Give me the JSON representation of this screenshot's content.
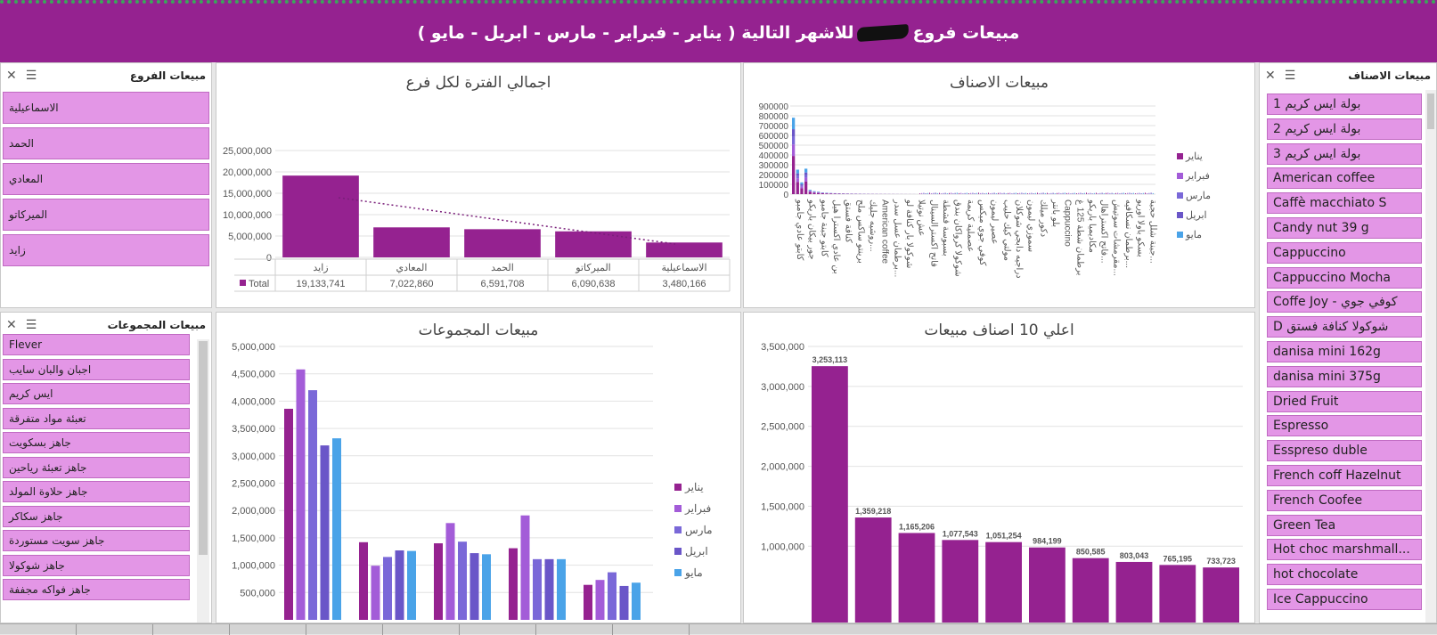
{
  "banner": {
    "title_pre": "مبيعات فروع",
    "title_post": "للاشهر التالية ( يناير - فبراير - مارس - ابريل - مايو )"
  },
  "branch_slicer": {
    "title": "مبيعات الفروع",
    "items": [
      "الاسماعيلية",
      "الحمد",
      "المعادي",
      "الميركاتو",
      "زايد"
    ]
  },
  "group_slicer": {
    "title": "مبيعات المجموعات",
    "items": [
      "Flever",
      "اجبان والبان سايب",
      "ايس كريم",
      "تعبئة مواد متفرقة",
      "جاهز بسكويت",
      "جاهز تعبئة رياحين",
      "جاهز حلاوة المولد",
      "جاهز سكاكر",
      "جاهز سويت مستوردة",
      "جاهز شوكولا",
      "جاهز فواكه مجففة"
    ]
  },
  "items_slicer": {
    "title": "مبيعات الاصناف",
    "items": [
      "1 بولة ايس كريم",
      "2 بولة ايس كريم",
      "3 بولة ايس كريم",
      "American coffee",
      "Caffè macchiato S",
      "Candy nut 39 g",
      "Cappuccino",
      "Cappuccino Mocha",
      "Coffe Joy - كوفي جوي",
      "D شوكولا كنافة فستق",
      "danisa mini 162g",
      "danisa mini 375g",
      "Dried Fruit",
      "Espresso",
      "Esspreso duble",
      "French coff Hazelnut",
      "French Coofee",
      "Green Tea",
      "Hot choc marshmall...",
      "hot chocolate",
      "Ice Cappuccino"
    ]
  },
  "months": [
    "يناير",
    "فبراير",
    "مارس",
    "ابريل",
    "مايو"
  ],
  "month_colors": [
    "#952290",
    "#a35cd8",
    "#7a68d8",
    "#6a56c8",
    "#4aa3e8"
  ],
  "tabs": [
    "",
    "",
    "",
    "",
    "",
    "",
    "",
    "",
    ""
  ],
  "chart_data": [
    {
      "type": "bar",
      "title": "اجمالي الفترة لكل فرع",
      "categories": [
        "زايد",
        "المعادي",
        "الحمد",
        "الميركاتو",
        "الاسماعيلية"
      ],
      "values": [
        19133741,
        7022860,
        6591708,
        6090638,
        3480166
      ],
      "value_labels": [
        "19,133,741",
        "7,022,860",
        "6,591,708",
        "6,090,638",
        "3,480,166"
      ],
      "series_label": "Total",
      "ylim": [
        0,
        25000000
      ],
      "yticks": [
        "0",
        "5,000,000",
        "10,000,000",
        "15,000,000",
        "20,000,000",
        "25,000,000"
      ],
      "trendline": true,
      "color": "#952290"
    },
    {
      "type": "bar",
      "title": "مبيعات الاصناف",
      "ylim": [
        0,
        900000
      ],
      "yticks": [
        "0",
        "100000",
        "200000",
        "300000",
        "400000",
        "500000",
        "600000",
        "700000",
        "800000",
        "900000"
      ],
      "x_labels": [
        "كابتو عادي جامبو",
        "جور بيكان باريكو",
        "كابتو جبنة جامبو",
        "بن عادي اكسترا هيل",
        "كنافة فستق",
        "برينتو ساكس ملح",
        "روشيه جليك...",
        "American coffee",
        "برطمان عسل سدر...",
        "شوكولا بار كنافة لو",
        "عش نوتيلا",
        "فاتح اكسترالسينال",
        "بسبوسة قشطة",
        "شوكولا كرواكان بندق",
        "عصملية كريمة",
        "كوفي جوي ميكس",
        "عصير ليمون",
        "مولتي كيك حليب",
        "دراجيه دابجي شوكلان",
        "سموزي ليمون",
        "دكور ميلك",
        "بلو بانتر",
        "Cappuccino",
        "برطمان شطة 125 غ",
        "مكاديميا باريكو",
        "فاتح اكستراهال...",
        "مقرمشات سوتيش...",
        "برطمان نسكافيه...",
        "بسكو باولا اوريو",
        "جبنة شلل حجبة..."
      ],
      "values": [
        780000,
        250000,
        120000,
        260000,
        45000,
        30000,
        25000,
        18000,
        15000,
        12000,
        10000,
        9000,
        8000,
        7000,
        6000,
        5500,
        5000,
        4500,
        4000,
        3500,
        3000,
        2600,
        2300,
        2000,
        1800,
        1500,
        1300,
        1100,
        900,
        700
      ],
      "legend_position": "right"
    },
    {
      "type": "bar",
      "title": "مبيعات المجموعات",
      "ylim": [
        0,
        5000000
      ],
      "yticks": [
        "500,000",
        "1,000,000",
        "1,500,000",
        "2,000,000",
        "2,500,000",
        "3,000,000",
        "3,500,000",
        "4,000,000",
        "4,500,000",
        "5,000,000"
      ],
      "series": [
        {
          "name": "يناير",
          "values": [
            3860000,
            1420000,
            1400000,
            1310000,
            640000
          ]
        },
        {
          "name": "فبراير",
          "values": [
            4580000,
            990000,
            1770000,
            1910000,
            730000
          ]
        },
        {
          "name": "مارس",
          "values": [
            4200000,
            1150000,
            1430000,
            1110000,
            870000
          ]
        },
        {
          "name": "ابريل",
          "values": [
            3190000,
            1270000,
            1220000,
            1110000,
            620000
          ]
        },
        {
          "name": "مايو",
          "values": [
            3320000,
            1260000,
            1200000,
            1110000,
            680000
          ]
        }
      ],
      "legend_position": "right"
    },
    {
      "type": "bar",
      "title": "اعلي 10 اصناف مبيعات",
      "values": [
        3253113,
        1359218,
        1165206,
        1077543,
        1051254,
        984199,
        850585,
        803043,
        765195,
        733723
      ],
      "value_labels": [
        "3,253,113",
        "1,359,218",
        "1,165,206",
        "1,077,543",
        "1,051,254",
        "984,199",
        "850,585",
        "803,043",
        "765,195",
        "733,723"
      ],
      "ylim": [
        0,
        3500000
      ],
      "yticks": [
        "1,000,000",
        "1,500,000",
        "2,000,000",
        "2,500,000",
        "3,000,000",
        "3,500,000"
      ],
      "color": "#952290"
    }
  ]
}
